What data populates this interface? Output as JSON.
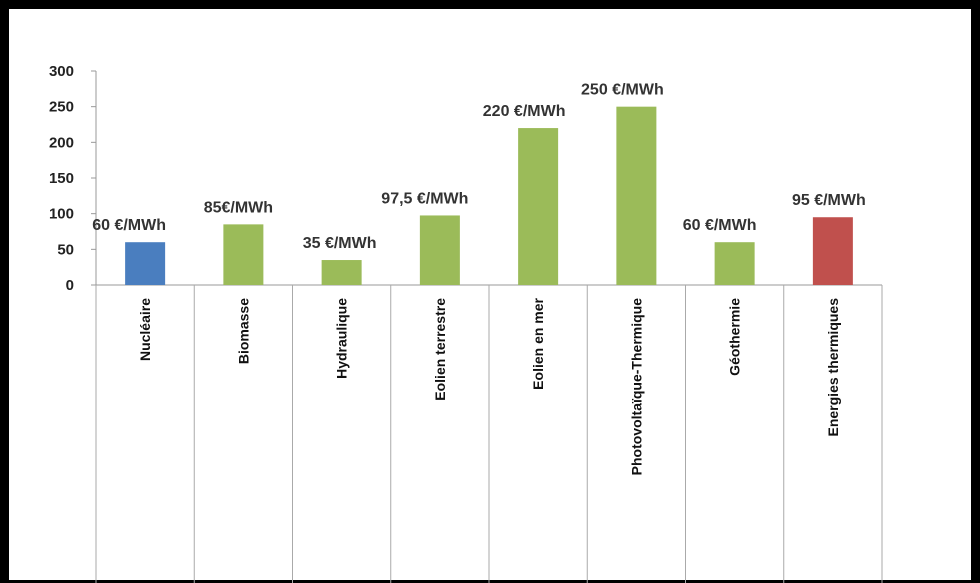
{
  "chart_data": {
    "type": "bar",
    "categories": [
      "Nucléaire",
      "Biomasse",
      "Hydraulique",
      "Eolien terrestre",
      "Eolien en mer",
      "Photovoltaïque-Thermique",
      "Géothermie",
      "Energies thermiques"
    ],
    "values": [
      60,
      85,
      35,
      97.5,
      220,
      250,
      60,
      95
    ],
    "data_labels": [
      "60 €/MWh",
      "85€/MWh",
      "35 €/MWh",
      "97,5 €/MWh",
      "220 €/MWh",
      "250 €/MWh",
      "60 €/MWh",
      "95 €/MWh"
    ],
    "colors": [
      "#4a7ebf",
      "#9bbb59",
      "#9bbb59",
      "#9bbb59",
      "#9bbb59",
      "#9bbb59",
      "#9bbb59",
      "#c0504d"
    ],
    "ylim": [
      0,
      300
    ],
    "yticks": [
      "0",
      "50",
      "100",
      "150",
      "200",
      "250",
      "300"
    ],
    "title": "",
    "xlabel": "",
    "ylabel": "",
    "grid": false,
    "legend": "none"
  }
}
